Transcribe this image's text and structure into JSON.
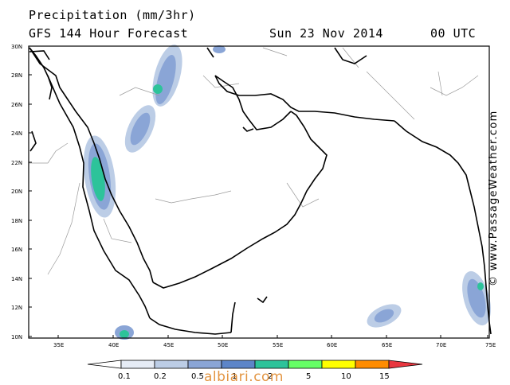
{
  "header": {
    "title": "Precipitation (mm/3hr)",
    "subtitle": "GFS 144 Hour Forecast",
    "date": "Sun 23 Nov 2014",
    "time": "00 UTC"
  },
  "map": {
    "lat_labels": [
      "30N",
      "28N",
      "26N",
      "24N",
      "22N",
      "20N",
      "18N",
      "16N",
      "14N",
      "12N",
      "10N"
    ],
    "lon_labels": [
      "35E",
      "40E",
      "45E",
      "50E",
      "55E",
      "60E",
      "65E",
      "70E",
      "75E"
    ]
  },
  "credit": "© www.PassageWeather.com",
  "legend": {
    "labels": [
      "0.1",
      "0.2",
      "0.5",
      "1",
      "2",
      "5",
      "10",
      "15"
    ],
    "colors": [
      "#ffffff",
      "#e6ecf6",
      "#bccde6",
      "#8aa5d6",
      "#5d85c8",
      "#2dc39a",
      "#66ff66",
      "#ffff00",
      "#ff8c00",
      "#e8363f"
    ]
  },
  "watermark": "albiari.com"
}
